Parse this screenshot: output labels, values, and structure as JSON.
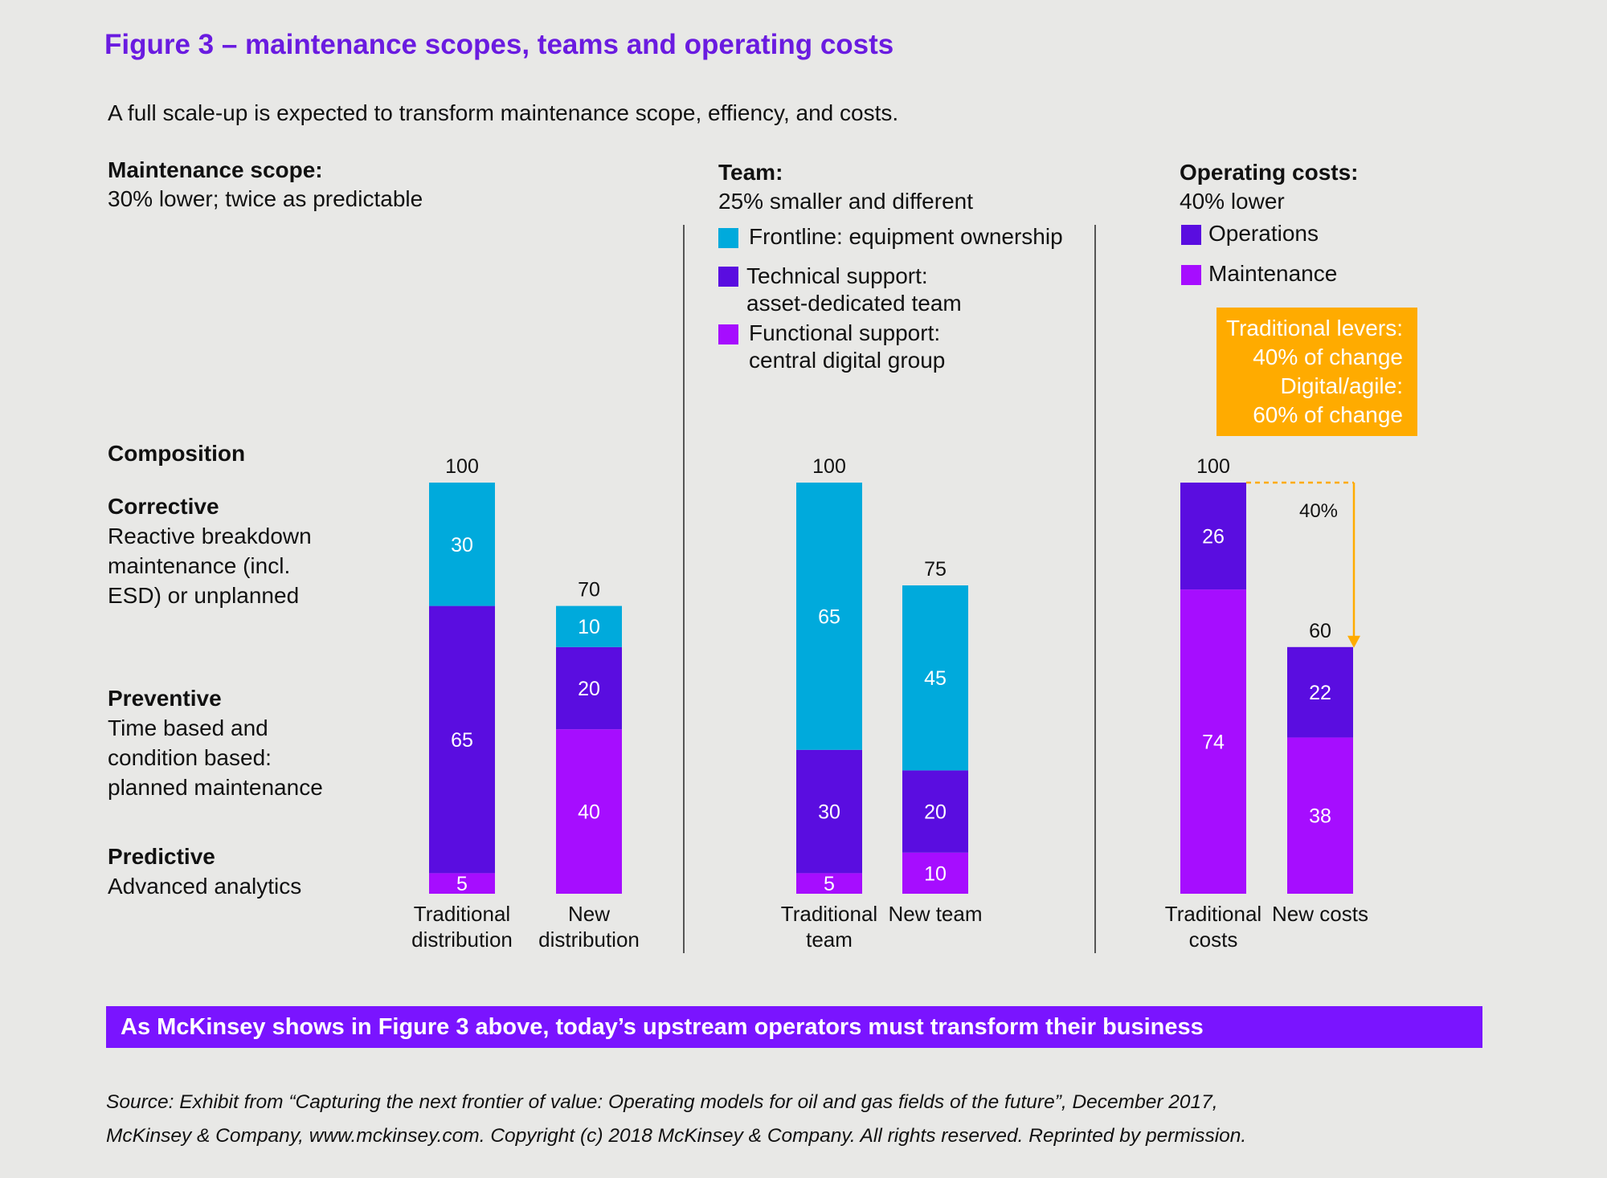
{
  "title": "Figure 3 – maintenance scopes, teams and operating costs",
  "subtitle": "A full scale-up is expected to transform maintenance scope, effiency, and costs.",
  "sections": {
    "scope": {
      "heading": "Maintenance scope:",
      "desc": "30% lower; twice as predictable"
    },
    "team": {
      "heading": "Team:",
      "desc": "25% smaller and different"
    },
    "costs": {
      "heading": "Operating costs:",
      "desc": "40% lower"
    }
  },
  "team_legend": [
    {
      "line1": "Frontline: equipment ownership",
      "line2": "",
      "color": "#00aadc"
    },
    {
      "line1": "Technical support:",
      "line2": "asset-dedicated team",
      "color": "#5a0de0"
    },
    {
      "line1": "Functional support:",
      "line2": "central digital group",
      "color": "#a60dff"
    }
  ],
  "cost_legend": [
    {
      "label": "Operations",
      "color": "#5a0de0"
    },
    {
      "label": "Maintenance",
      "color": "#a60dff"
    }
  ],
  "callout": {
    "l1": "Traditional levers:",
    "l2": "40% of change",
    "l3": "Digital/agile:",
    "l4": "60% of change"
  },
  "composition": {
    "heading": "Composition",
    "corrective": {
      "h": "Corrective",
      "l1": "Reactive breakdown",
      "l2": "maintenance (incl.",
      "l3": "ESD) or unplanned"
    },
    "preventive": {
      "h": "Preventive",
      "l1": "Time based and",
      "l2": "condition based:",
      "l3": "planned maintenance"
    },
    "predictive": {
      "h": "Predictive",
      "l1": "Advanced analytics"
    }
  },
  "colors": {
    "cyan": "#00aadc",
    "indigo": "#5a0de0",
    "magenta": "#a60dff",
    "orange": "#ffab00",
    "title": "#6a1be0"
  },
  "chart_data": [
    {
      "type": "bar",
      "stacked": true,
      "categories": [
        [
          "Traditional",
          "distribution"
        ],
        [
          "New",
          "distribution"
        ]
      ],
      "totals": [
        100,
        70
      ],
      "series": [
        {
          "values": [
            5,
            40
          ],
          "color": "#a60dff"
        },
        {
          "values": [
            65,
            20
          ],
          "color": "#5a0de0"
        },
        {
          "values": [
            30,
            10
          ],
          "color": "#00aadc"
        }
      ]
    },
    {
      "type": "bar",
      "stacked": true,
      "categories": [
        [
          "Traditional",
          "team"
        ],
        [
          "New team"
        ]
      ],
      "totals": [
        100,
        75
      ],
      "series": [
        {
          "name": "Functional support: central digital group",
          "values": [
            5,
            10
          ],
          "color": "#a60dff"
        },
        {
          "name": "Technical support: asset-dedicated team",
          "values": [
            30,
            20
          ],
          "color": "#5a0de0"
        },
        {
          "name": "Frontline: equipment ownership",
          "values": [
            65,
            45
          ],
          "color": "#00aadc"
        }
      ]
    },
    {
      "type": "bar",
      "stacked": true,
      "categories": [
        [
          "Traditional",
          "costs"
        ],
        [
          "New costs"
        ]
      ],
      "totals": [
        100,
        60
      ],
      "series": [
        {
          "name": "Maintenance",
          "values": [
            74,
            38
          ],
          "color": "#a60dff"
        },
        {
          "name": "Operations",
          "values": [
            26,
            22
          ],
          "color": "#5a0de0"
        }
      ],
      "annotation": "40%"
    }
  ],
  "banner": "As McKinsey shows in Figure 3 above, today’s upstream operators must transform their business",
  "source": {
    "l1": "Source: Exhibit from “Capturing the next frontier of value: Operating models for oil and gas fields of the future”, December 2017,",
    "l2": "McKinsey & Company, www.mckinsey.com. Copyright (c) 2018 McKinsey & Company. All rights reserved. Reprinted by permission."
  }
}
